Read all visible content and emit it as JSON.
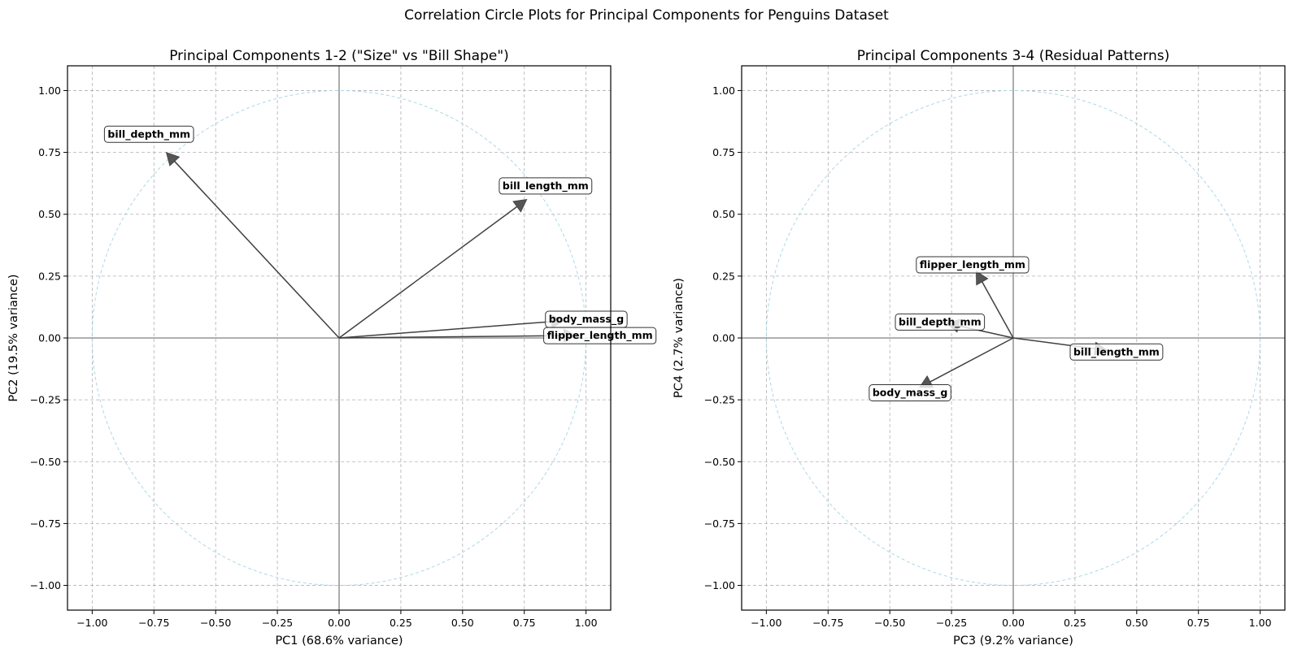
{
  "colors": {
    "arrow": "#404040",
    "arrow_head": "#555555",
    "circle": "#add8e6",
    "grid": "#b0b0b0",
    "zero_line": "#808080",
    "label_box_border": "#333333"
  },
  "chart_data": {
    "suptitle": "Correlation Circle Plots for Principal Components for Penguins Dataset",
    "panels": [
      {
        "type": "scatter",
        "title": "Principal Components 1-2 (\"Size\" vs \"Bill Shape\")",
        "xlabel": "PC1 (68.6% variance)",
        "ylabel": "PC2 (19.5% variance)",
        "xlim": [
          -1.1,
          1.1
        ],
        "ylim": [
          -1.1,
          1.1
        ],
        "xticks": [
          "−1.00",
          "−0.75",
          "−0.50",
          "−0.25",
          "0.00",
          "0.25",
          "0.50",
          "0.75",
          "1.00"
        ],
        "yticks": [
          "−1.00",
          "−0.75",
          "−0.50",
          "−0.25",
          "0.00",
          "0.25",
          "0.50",
          "0.75",
          "1.00"
        ],
        "tick_values": [
          -1.0,
          -0.75,
          -0.5,
          -0.25,
          0.0,
          0.25,
          0.5,
          0.75,
          1.0
        ],
        "grid": true,
        "unit_circle": true,
        "vectors": [
          {
            "name": "bill_length_mm",
            "x": 0.76,
            "y": 0.56
          },
          {
            "name": "bill_depth_mm",
            "x": -0.7,
            "y": 0.75
          },
          {
            "name": "flipper_length_mm",
            "x": 0.96,
            "y": 0.01
          },
          {
            "name": "body_mass_g",
            "x": 0.91,
            "y": 0.07
          }
        ]
      },
      {
        "type": "scatter",
        "title": "Principal Components 3-4 (Residual Patterns)",
        "xlabel": "PC3 (9.2% variance)",
        "ylabel": "PC4 (2.7% variance)",
        "xlim": [
          -1.1,
          1.1
        ],
        "ylim": [
          -1.1,
          1.1
        ],
        "xticks": [
          "−1.00",
          "−0.75",
          "−0.50",
          "−0.25",
          "0.00",
          "0.25",
          "0.50",
          "0.75",
          "1.00"
        ],
        "yticks": [
          "−1.00",
          "−0.75",
          "−0.50",
          "−0.25",
          "0.00",
          "0.25",
          "0.50",
          "0.75",
          "1.00"
        ],
        "tick_values": [
          -1.0,
          -0.75,
          -0.5,
          -0.25,
          0.0,
          0.25,
          0.5,
          0.75,
          1.0
        ],
        "grid": true,
        "unit_circle": true,
        "vectors": [
          {
            "name": "bill_length_mm",
            "x": 0.38,
            "y": -0.05
          },
          {
            "name": "bill_depth_mm",
            "x": -0.27,
            "y": 0.06
          },
          {
            "name": "flipper_length_mm",
            "x": -0.15,
            "y": 0.27
          },
          {
            "name": "body_mass_g",
            "x": -0.38,
            "y": -0.2
          }
        ]
      }
    ]
  }
}
